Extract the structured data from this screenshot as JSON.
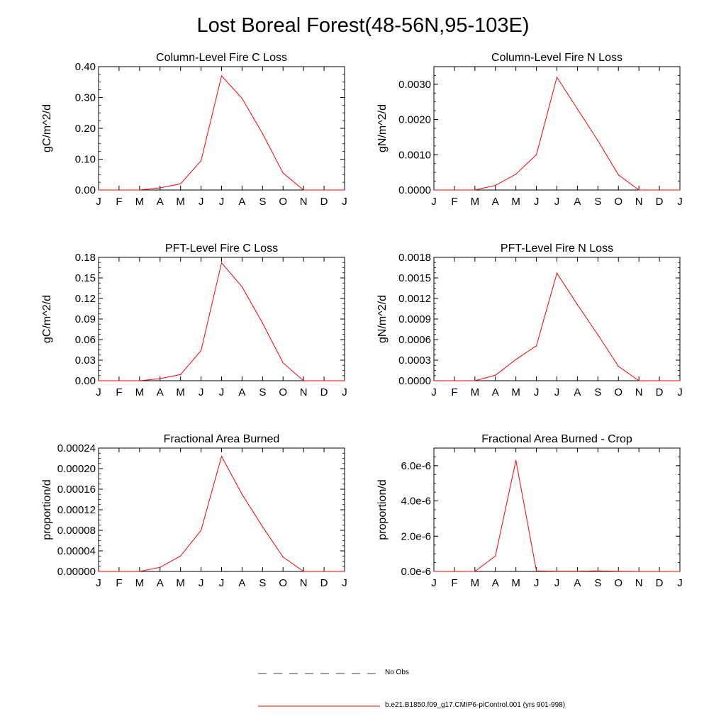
{
  "title": "Lost Boreal Forest(48-56N,95-103E)",
  "months": [
    "J",
    "F",
    "M",
    "A",
    "M",
    "J",
    "J",
    "A",
    "S",
    "O",
    "N",
    "D",
    "J"
  ],
  "legend": {
    "obs_label": "No Obs",
    "model_label": "b.e21.B1850.f09_g17.CMIP6-piControl.001 (yrs 901-998)",
    "obs_color": "#000000",
    "model_color": "#ff0000"
  },
  "chart_data": [
    {
      "type": "line",
      "title": "Column-Level Fire C Loss",
      "ylabel": "gC/m^2/d",
      "ylim": [
        0,
        0.4
      ],
      "yticks": [
        0,
        0.1,
        0.2,
        0.3,
        0.4
      ],
      "ytick_labels": [
        "0.00",
        "0.10",
        "0.20",
        "0.30",
        "0.40"
      ],
      "values": [
        0,
        0,
        0,
        0.007,
        0.02,
        0.095,
        0.37,
        0.297,
        0.183,
        0.055,
        0,
        0,
        0
      ]
    },
    {
      "type": "line",
      "title": "Column-Level Fire N Loss",
      "ylabel": "gN/m^2/d",
      "ylim": [
        0,
        0.0035
      ],
      "yticks": [
        0,
        0.001,
        0.002,
        0.003
      ],
      "ytick_labels": [
        "0.0000",
        "0.0010",
        "0.0020",
        "0.0030"
      ],
      "values": [
        0,
        0,
        0,
        0.00013,
        0.00045,
        0.001,
        0.0032,
        0.0023,
        0.0014,
        0.00043,
        0,
        0,
        0
      ]
    },
    {
      "type": "line",
      "title": "PFT-Level Fire C Loss",
      "ylabel": "gC/m^2/d",
      "ylim": [
        0,
        0.18
      ],
      "yticks": [
        0,
        0.03,
        0.06,
        0.09,
        0.12,
        0.15,
        0.18
      ],
      "ytick_labels": [
        "0.00",
        "0.03",
        "0.06",
        "0.09",
        "0.12",
        "0.15",
        "0.18"
      ],
      "values": [
        0,
        0,
        0,
        0.003,
        0.009,
        0.044,
        0.172,
        0.137,
        0.084,
        0.026,
        0,
        0,
        0
      ]
    },
    {
      "type": "line",
      "title": "PFT-Level Fire N Loss",
      "ylabel": "gN/m^2/d",
      "ylim": [
        0,
        0.0018
      ],
      "yticks": [
        0,
        0.0003,
        0.0006,
        0.0009,
        0.0012,
        0.0015,
        0.0018
      ],
      "ytick_labels": [
        "0.0000",
        "0.0003",
        "0.0006",
        "0.0009",
        "0.0012",
        "0.0015",
        "0.0018"
      ],
      "values": [
        0,
        0,
        0,
        8e-05,
        0.00031,
        0.00051,
        0.00157,
        0.00111,
        0.00067,
        0.00021,
        0,
        0,
        0
      ]
    },
    {
      "type": "line",
      "title": "Fractional Area Burned",
      "ylabel": "proportion/d",
      "ylim": [
        0,
        0.00024
      ],
      "yticks": [
        0,
        4e-05,
        8e-05,
        0.00012,
        0.00016,
        0.0002,
        0.00024
      ],
      "ytick_labels": [
        "0.00000",
        "0.00004",
        "0.00008",
        "0.00012",
        "0.00016",
        "0.00020",
        "0.00024"
      ],
      "values": [
        0,
        0,
        0,
        8e-06,
        3e-05,
        8e-05,
        0.000224,
        0.00015,
        8.7e-05,
        2.8e-05,
        0,
        0,
        0
      ]
    },
    {
      "type": "line",
      "title": "Fractional Area Burned - Crop",
      "ylabel": "proportion/d",
      "ylim": [
        0,
        7e-06
      ],
      "yticks": [
        0,
        2e-06,
        4e-06,
        6e-06
      ],
      "ytick_labels": [
        "0.0e-6",
        "2.0e-6",
        "4.0e-6",
        "6.0e-6"
      ],
      "values": [
        0,
        0,
        0,
        8.8e-07,
        6.3e-06,
        3e-08,
        1e-08,
        1e-08,
        3e-08,
        1e-08,
        0,
        0,
        0
      ]
    }
  ]
}
